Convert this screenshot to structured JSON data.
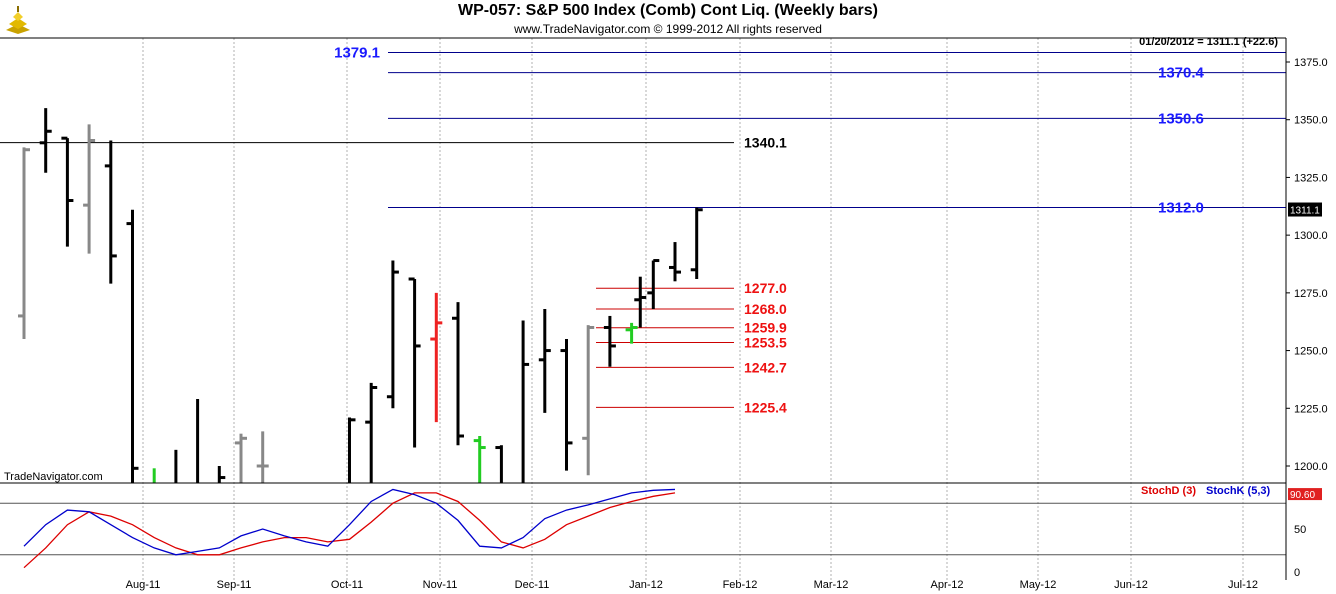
{
  "header": {
    "title": "WP-057:  S&P 500 Index (Comb) Cont Liq.  (Weekly bars)",
    "subtitle": "www.TradeNavigator.com © 1999-2012 All rights reserved",
    "quote": "01/20/2012 = 1311.1 (+22.6)",
    "logo_icon": "gold-bars-icon"
  },
  "footer": {
    "brand": "TradeNavigator.com"
  },
  "colors": {
    "up_bar": "#000000",
    "roll_bar": "#888888",
    "green_bar": "#22cc22",
    "red_bar": "#ee2222",
    "blue_line": "#00008b",
    "red_line": "#cc0000",
    "black_line": "#000000",
    "stoch_d": "#dd0000",
    "stoch_k": "#0000cc"
  },
  "chart_data": [
    {
      "type": "ohlc",
      "title": "WP-057:  S&P 500 Index (Comb) Cont Liq.  (Weekly bars)",
      "ylim": [
        1193,
        1386
      ],
      "y_ticks": [
        1200.0,
        1225.0,
        1250.0,
        1275.0,
        1300.0,
        1325.0,
        1350.0,
        1375.0
      ],
      "x_tick_labels": [
        "Aug-11",
        "Sep-11",
        "Oct-11",
        "Nov-11",
        "Dec-11",
        "Jan-12",
        "Feb-12",
        "Mar-12",
        "Apr-12",
        "May-12",
        "Jun-12",
        "Jul-12"
      ],
      "last_price_label": "1311.1",
      "bars": [
        {
          "week": 0,
          "open": 1265,
          "high": 1338,
          "low": 1255,
          "close": 1337,
          "color": "gray"
        },
        {
          "week": 1,
          "open": 1340,
          "high": 1355,
          "low": 1327,
          "close": 1345,
          "color": "black"
        },
        {
          "week": 2,
          "open": 1342,
          "high": 1342,
          "low": 1295,
          "close": 1315,
          "color": "black"
        },
        {
          "week": 3,
          "open": 1313,
          "high": 1348,
          "low": 1292,
          "close": 1341,
          "color": "gray"
        },
        {
          "week": 4,
          "open": 1330,
          "high": 1341,
          "low": 1279,
          "close": 1291,
          "color": "black"
        },
        {
          "week": 5,
          "open": 1305,
          "high": 1311,
          "low": 1170,
          "close": 1199,
          "color": "black"
        },
        {
          "week": 6,
          "open": 1170,
          "high": 1199,
          "low": 1150,
          "close": 1190,
          "color": "green"
        },
        {
          "week": 7,
          "open": 1190,
          "high": 1207,
          "low": 1160,
          "close": 1180,
          "color": "black"
        },
        {
          "week": 8,
          "open": 1180,
          "high": 1229,
          "low": 1150,
          "close": 1170,
          "color": "black"
        },
        {
          "week": 9,
          "open": 1170,
          "high": 1200,
          "low": 1150,
          "close": 1195,
          "color": "black"
        },
        {
          "week": 10,
          "open": 1210,
          "high": 1214,
          "low": 1170,
          "close": 1212,
          "color": "gray"
        },
        {
          "week": 11,
          "open": 1200,
          "high": 1215,
          "low": 1170,
          "close": 1200,
          "color": "gray"
        },
        {
          "week": 15,
          "open": 1190,
          "high": 1221,
          "low": 1160,
          "close": 1220,
          "color": "black"
        },
        {
          "week": 16,
          "open": 1219,
          "high": 1236,
          "low": 1190,
          "close": 1234,
          "color": "black"
        },
        {
          "week": 17,
          "open": 1230,
          "high": 1289,
          "low": 1225,
          "close": 1284,
          "color": "black"
        },
        {
          "week": 18,
          "open": 1281,
          "high": 1281,
          "low": 1208,
          "close": 1252,
          "color": "black"
        },
        {
          "week": 19,
          "open": 1255,
          "high": 1275,
          "low": 1219,
          "close": 1262,
          "color": "red"
        },
        {
          "week": 20,
          "open": 1264,
          "high": 1271,
          "low": 1209,
          "close": 1213,
          "color": "black"
        },
        {
          "week": 21,
          "open": 1211,
          "high": 1213,
          "low": 1190,
          "close": 1208,
          "color": "green"
        },
        {
          "week": 22,
          "open": 1208,
          "high": 1209,
          "low": 1170,
          "close": 1180,
          "color": "black"
        },
        {
          "week": 23,
          "open": 1180,
          "high": 1263,
          "low": 1180,
          "close": 1244,
          "color": "black"
        },
        {
          "week": 24,
          "open": 1246,
          "high": 1268,
          "low": 1223,
          "close": 1250,
          "color": "black"
        },
        {
          "week": 25,
          "open": 1250,
          "high": 1255,
          "low": 1198,
          "close": 1210,
          "color": "black"
        },
        {
          "week": 26,
          "open": 1212,
          "high": 1261,
          "low": 1196,
          "close": 1260,
          "color": "gray"
        },
        {
          "week": 27,
          "open": 1260,
          "high": 1265,
          "low": 1243,
          "close": 1252,
          "color": "black"
        },
        {
          "week": 28,
          "open": 1259,
          "high": 1262,
          "low": 1253,
          "close": 1260,
          "color": "green"
        },
        {
          "week": 28.4,
          "open": 1272,
          "high": 1282,
          "low": 1260,
          "close": 1273,
          "color": "black"
        },
        {
          "week": 29,
          "open": 1275,
          "high": 1289,
          "low": 1268,
          "close": 1289,
          "color": "black"
        },
        {
          "week": 30,
          "open": 1286,
          "high": 1297,
          "low": 1280,
          "close": 1284,
          "color": "black"
        },
        {
          "week": 31,
          "open": 1285,
          "high": 1312,
          "low": 1281,
          "close": 1311,
          "color": "black"
        }
      ],
      "levels": [
        {
          "value": 1379.1,
          "label": "1379.1",
          "color": "blue",
          "label_side": "left"
        },
        {
          "value": 1370.4,
          "label": "1370.4",
          "color": "blue",
          "label_side": "right"
        },
        {
          "value": 1350.6,
          "label": "1350.6",
          "color": "blue",
          "label_side": "right"
        },
        {
          "value": 1340.1,
          "label": "1340.1",
          "color": "black",
          "label_side": "right"
        },
        {
          "value": 1312.0,
          "label": "1312.0",
          "color": "blue",
          "label_side": "right"
        },
        {
          "value": 1277.0,
          "label": "1277.0",
          "color": "red",
          "label_side": "right"
        },
        {
          "value": 1268.0,
          "label": "1268.0",
          "color": "red",
          "label_side": "right"
        },
        {
          "value": 1259.9,
          "label": "1259.9",
          "color": "red",
          "label_side": "right"
        },
        {
          "value": 1253.5,
          "label": "1253.5",
          "color": "red",
          "label_side": "right"
        },
        {
          "value": 1242.7,
          "label": "1242.7",
          "color": "red",
          "label_side": "right"
        },
        {
          "value": 1225.4,
          "label": "1225.4",
          "color": "red",
          "label_side": "right"
        }
      ]
    },
    {
      "type": "line",
      "ylim": [
        0,
        100
      ],
      "y_ticks": [
        50,
        0
      ],
      "reference_lines": [
        80,
        20
      ],
      "last_value_label": "90.60",
      "series": [
        {
          "name": "StochD (3)",
          "values": [
            5,
            28,
            55,
            70,
            65,
            55,
            40,
            28,
            20,
            20,
            28,
            35,
            40,
            40,
            35,
            38,
            58,
            80,
            92,
            92,
            82,
            60,
            35,
            28,
            38,
            55,
            65,
            75,
            82,
            88,
            92
          ]
        },
        {
          "name": "StochK (5,3)",
          "values": [
            30,
            55,
            72,
            70,
            55,
            40,
            28,
            20,
            24,
            28,
            42,
            50,
            42,
            35,
            30,
            55,
            82,
            96,
            90,
            80,
            60,
            30,
            28,
            40,
            62,
            72,
            78,
            85,
            92,
            95,
            96
          ]
        }
      ]
    }
  ]
}
